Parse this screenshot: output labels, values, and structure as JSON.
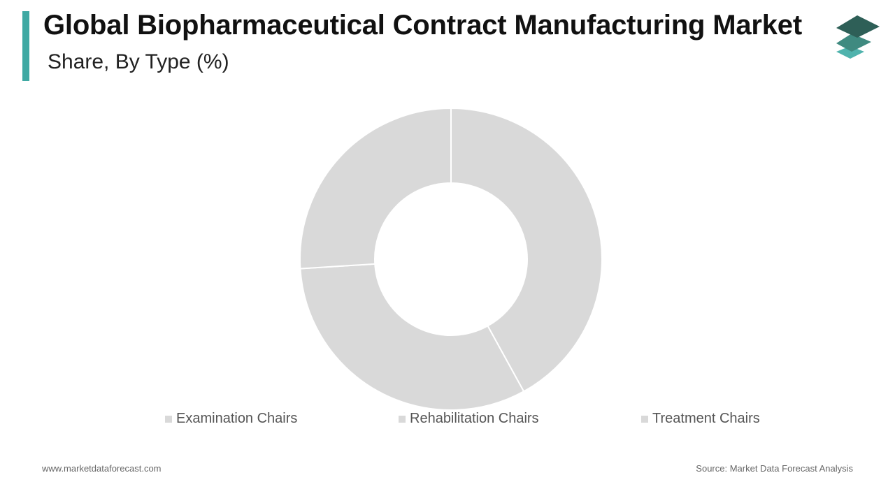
{
  "header": {
    "title": "Global Biopharmaceutical Contract Manufacturing Market",
    "subtitle": "Share, By Type (%)"
  },
  "colors": {
    "accent": "#3fa9a3",
    "slice_fill": "#d9d9d9",
    "slice_border": "#ffffff",
    "logo_dark": "#2e5f57",
    "logo_mid": "#3f8a80",
    "logo_light": "#4fb3ad"
  },
  "logo": {
    "icon": "stacked-layers-icon"
  },
  "chart_data": {
    "type": "pie",
    "variant": "donut",
    "categories": [
      "Examination Chairs",
      "Rehabilitation Chairs",
      "Treatment Chairs"
    ],
    "values": [
      42,
      32,
      26
    ],
    "title": "Share, By Type (%)",
    "legend_position": "bottom",
    "data_labels": false
  },
  "footer": {
    "website": "www.marketdataforecast.com",
    "source": "Source: Market Data Forecast Analysis"
  }
}
